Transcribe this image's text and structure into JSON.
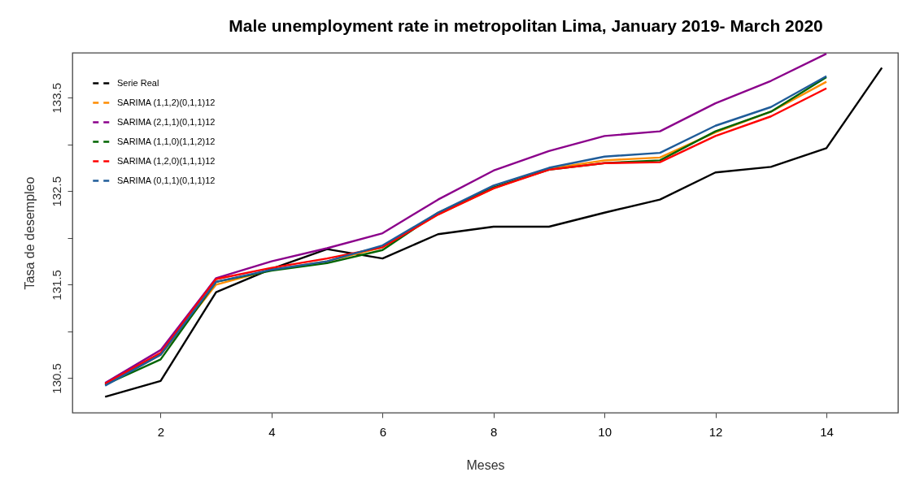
{
  "chart_data": {
    "type": "line",
    "title": "Male unemployment rate in metropolitan Lima, January 2019- March 2020",
    "xlabel": "Meses",
    "ylabel": "Tasa de desempleo",
    "x": [
      1,
      2,
      3,
      4,
      5,
      6,
      7,
      8,
      9,
      10,
      11,
      12,
      13,
      14,
      15
    ],
    "series": [
      {
        "name": "Serie Real",
        "color": "#000000",
        "values": [
          130.3,
          130.47,
          131.42,
          131.67,
          131.88,
          131.78,
          132.04,
          132.12,
          132.12,
          132.27,
          132.41,
          132.7,
          132.76,
          132.96,
          133.82
        ]
      },
      {
        "name": "SARIMA (1,1,2)(0,1,1)12",
        "color": "#ff8c00",
        "values": [
          130.43,
          130.75,
          131.5,
          131.66,
          131.75,
          131.9,
          132.25,
          132.53,
          132.74,
          132.83,
          132.86,
          133.13,
          133.35,
          133.67,
          null
        ]
      },
      {
        "name": "SARIMA (2,1,1)(0,1,1)12",
        "color": "#8b008b",
        "values": [
          130.45,
          130.8,
          131.57,
          131.75,
          131.89,
          132.05,
          132.41,
          132.72,
          132.93,
          133.09,
          133.14,
          133.44,
          133.68,
          133.97,
          null
        ]
      },
      {
        "name": "SARIMA (1,1,0)(1,1,2)12",
        "color": "#006400",
        "values": [
          130.43,
          130.7,
          131.53,
          131.65,
          131.73,
          131.87,
          132.27,
          132.54,
          132.73,
          132.8,
          132.83,
          133.14,
          133.35,
          133.72,
          null
        ]
      },
      {
        "name": "SARIMA (1,2,0)(1,1,1)12",
        "color": "#ff0000",
        "values": [
          130.44,
          130.77,
          131.56,
          131.68,
          131.78,
          131.9,
          132.25,
          132.53,
          132.73,
          132.8,
          132.81,
          133.09,
          133.3,
          133.6,
          null
        ]
      },
      {
        "name": "SARIMA (0,1,1)(0,1,1)12",
        "color": "#1f5c99",
        "values": [
          130.42,
          130.75,
          131.53,
          131.66,
          131.75,
          131.92,
          132.27,
          132.56,
          132.75,
          132.87,
          132.91,
          133.2,
          133.4,
          133.73,
          null
        ]
      }
    ],
    "xlim": [
      0.41,
      15.29
    ],
    "xticks": [
      2,
      4,
      6,
      8,
      10,
      12,
      14
    ],
    "ylim": [
      130.13,
      133.98
    ],
    "yticks": [
      130.5,
      {
        "value": 131,
        "label": null
      },
      131.5,
      {
        "value": 132,
        "label": null
      },
      132.5,
      {
        "value": 133,
        "label": null
      },
      133.5
    ],
    "grid": false,
    "legend": "top left",
    "marker": "none",
    "line_style": "solid"
  }
}
